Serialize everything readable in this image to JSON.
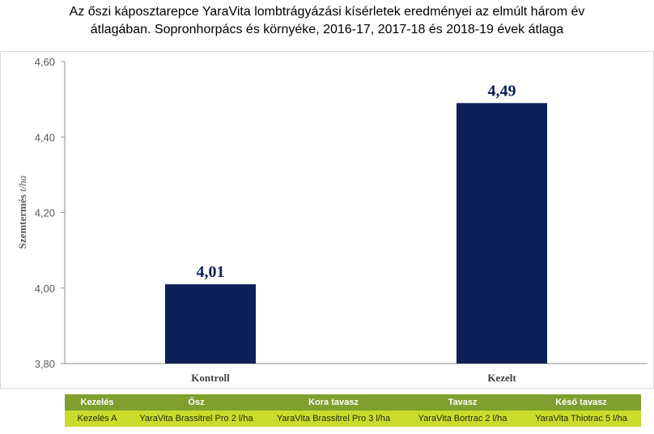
{
  "title": {
    "line1": "Az őszi káposztarepce YaraVita lombtrágyázási kísérletek eredményei az elmúlt három év",
    "line2": "átlagában. Sopronhorpács és környéke, 2016-17, 2017-18 és 2018-19 évek átlaga"
  },
  "colors": {
    "bar": "#0c2157",
    "table_head": "#7f9f2e",
    "table_body": "#c9dc2c"
  },
  "chart_data": {
    "type": "bar",
    "categories": [
      "Kontroll",
      "Kezelt"
    ],
    "values": [
      4.01,
      4.49
    ],
    "data_labels": [
      "4,01",
      "4,49"
    ],
    "ylabel_main": "Szemtermés",
    "ylabel_unit": "t/ha",
    "ylim": [
      3.8,
      4.6
    ],
    "yticks": [
      3.8,
      4.0,
      4.2,
      4.4,
      4.6
    ],
    "ytick_labels": [
      "3,80",
      "4,00",
      "4,20",
      "4,40",
      "4,60"
    ],
    "grid": false,
    "legend": "none"
  },
  "table": {
    "headers": [
      "Kezelés",
      "Ősz",
      "Kora tavasz",
      "Tavasz",
      "Késő tavasz"
    ],
    "row": [
      "Kezelés A",
      "YaraVita Brassitrel Pro 2 l/ha",
      "YaraVita Brassitrel Pro 3 l/ha",
      "YaraVita Bortrac 2 l/ha",
      "YaraVita Thiotrac 5 l/ha"
    ]
  }
}
